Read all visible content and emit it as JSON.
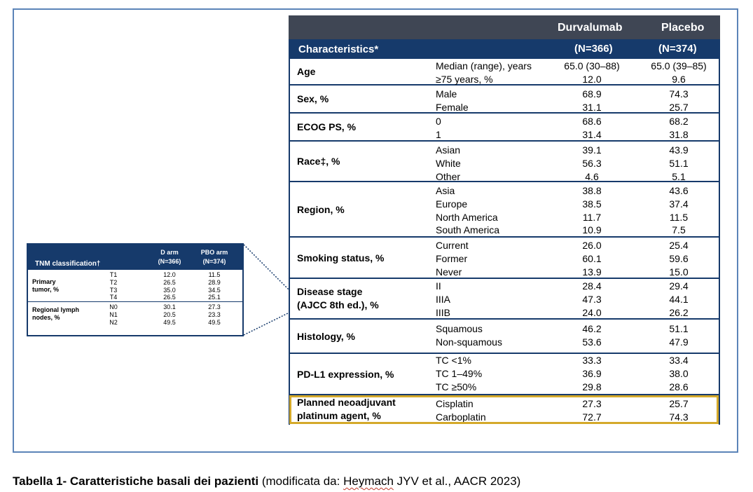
{
  "main_table": {
    "header_row1": {
      "durvalumab": "Durvalumab",
      "placebo": "Placebo"
    },
    "header_row2": {
      "characteristics": "Characteristics*",
      "durvalumab_n": "(N=366)",
      "placebo_n": "(N=374)"
    },
    "rows": [
      {
        "label": "Age",
        "subs": [
          {
            "label": "Median (range), years",
            "d": "65.0 (30–88)",
            "p": "65.0 (39–85)"
          },
          {
            "label": "≥75 years, %",
            "d": "12.0",
            "p": "9.6"
          }
        ]
      },
      {
        "label": "Sex, %",
        "subs": [
          {
            "label": "Male",
            "d": "68.9",
            "p": "74.3"
          },
          {
            "label": "Female",
            "d": "31.1",
            "p": "25.7"
          }
        ]
      },
      {
        "label": "ECOG PS, %",
        "subs": [
          {
            "label": "0",
            "d": "68.6",
            "p": "68.2"
          },
          {
            "label": "1",
            "d": "31.4",
            "p": "31.8"
          }
        ]
      },
      {
        "label": "Race‡, %",
        "subs": [
          {
            "label": "Asian",
            "d": "39.1",
            "p": "43.9"
          },
          {
            "label": "White",
            "d": "56.3",
            "p": "51.1"
          },
          {
            "label": "Other",
            "d": "4.6",
            "p": "5.1"
          }
        ]
      },
      {
        "label": "Region, %",
        "subs": [
          {
            "label": "Asia",
            "d": "38.8",
            "p": "43.6"
          },
          {
            "label": "Europe",
            "d": "38.5",
            "p": "37.4"
          },
          {
            "label": "North America",
            "d": "11.7",
            "p": "11.5"
          },
          {
            "label": "South America",
            "d": "10.9",
            "p": "7.5"
          }
        ]
      },
      {
        "label": "Smoking status, %",
        "subs": [
          {
            "label": "Current",
            "d": "26.0",
            "p": "25.4"
          },
          {
            "label": "Former",
            "d": "60.1",
            "p": "59.6"
          },
          {
            "label": "Never",
            "d": "13.9",
            "p": "15.0"
          }
        ]
      },
      {
        "label": "Disease stage",
        "label2": "(AJCC 8th ed.), %",
        "subs": [
          {
            "label": "II",
            "d": "28.4",
            "p": "29.4"
          },
          {
            "label": "IIIA",
            "d": "47.3",
            "p": "44.1"
          },
          {
            "label": "IIIB",
            "d": "24.0",
            "p": "26.2"
          }
        ]
      },
      {
        "label": "Histology, %",
        "subs": [
          {
            "label": "Squamous",
            "d": "46.2",
            "p": "51.1"
          },
          {
            "label": "Non-squamous",
            "d": "53.6",
            "p": "47.9"
          }
        ]
      },
      {
        "label": "PD-L1 expression, %",
        "subs": [
          {
            "label": "TC <1%",
            "d": "33.3",
            "p": "33.4"
          },
          {
            "label": "TC 1–49%",
            "d": "36.9",
            "p": "38.0"
          },
          {
            "label": "TC ≥50%",
            "d": "29.8",
            "p": "28.6"
          }
        ]
      },
      {
        "label": "Planned neoadjuvant",
        "label2": "platinum agent, %",
        "subs": [
          {
            "label": "Cisplatin",
            "d": "27.3",
            "p": "25.7"
          },
          {
            "label": "Carboplatin",
            "d": "72.7",
            "p": "74.3"
          }
        ]
      }
    ]
  },
  "tnm_table": {
    "header": {
      "title": "TNM classification†",
      "d_arm": "D arm",
      "d_n": "(N=366)",
      "pbo_arm": "PBO arm",
      "pbo_n": "(N=374)"
    },
    "groups": [
      {
        "label1": "Primary",
        "label2": "tumor, %",
        "rows": [
          {
            "code": "T1",
            "d": "12.0",
            "p": "11.5"
          },
          {
            "code": "T2",
            "d": "26.5",
            "p": "28.9"
          },
          {
            "code": "T3",
            "d": "35.0",
            "p": "34.5"
          },
          {
            "code": "T4",
            "d": "26.5",
            "p": "25.1"
          }
        ]
      },
      {
        "label1": "Regional lymph",
        "label2": "nodes, %",
        "rows": [
          {
            "code": "N0",
            "d": "30.1",
            "p": "27.3"
          },
          {
            "code": "N1",
            "d": "20.5",
            "p": "23.3"
          },
          {
            "code": "N2",
            "d": "49.5",
            "p": "49.5"
          }
        ]
      }
    ]
  },
  "caption": {
    "bold": "Tabella 1- Caratteristiche basali dei pazienti",
    "normal_start": " (modificata da: ",
    "underlined": "Heymach",
    "normal_end": " JYV et al., AACR 2023)"
  },
  "colors": {
    "header_dark": "#3f4654",
    "header_navy": "#163a6b",
    "frame": "#5b84b8",
    "highlight": "#d4a92a"
  }
}
